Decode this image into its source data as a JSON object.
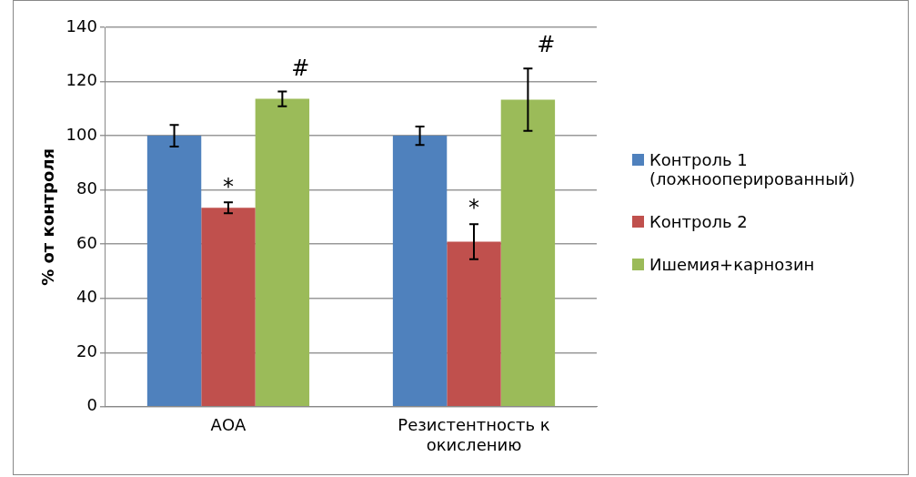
{
  "chart_data": {
    "type": "bar",
    "ylabel": "% от контроля",
    "categories": [
      "АОА",
      "Резистентность к окислению"
    ],
    "series": [
      {
        "name": "Контроль 1 (ложнооперированный)",
        "color": "#4f81bd",
        "values": [
          100,
          100
        ],
        "errors": [
          4,
          3.4
        ]
      },
      {
        "name": "Контроль 2",
        "color": "#c0504d",
        "values": [
          73.4,
          60.9
        ],
        "errors": [
          2,
          6.5
        ]
      },
      {
        "name": "Ишемия+карнозин",
        "color": "#9bbb59",
        "values": [
          113.6,
          113.3
        ],
        "errors": [
          2.7,
          11.5
        ]
      }
    ],
    "ylim": [
      0,
      140
    ],
    "yticks": [
      0,
      20,
      40,
      60,
      80,
      100,
      120,
      140
    ],
    "grid": "y",
    "legend": "right",
    "annotations": [
      {
        "text": "*",
        "x": "АОА",
        "y": 73.4
      },
      "#",
      {
        "text": "*",
        "x": "Резистентность к окислению",
        "y": 60.9
      },
      "#"
    ]
  }
}
